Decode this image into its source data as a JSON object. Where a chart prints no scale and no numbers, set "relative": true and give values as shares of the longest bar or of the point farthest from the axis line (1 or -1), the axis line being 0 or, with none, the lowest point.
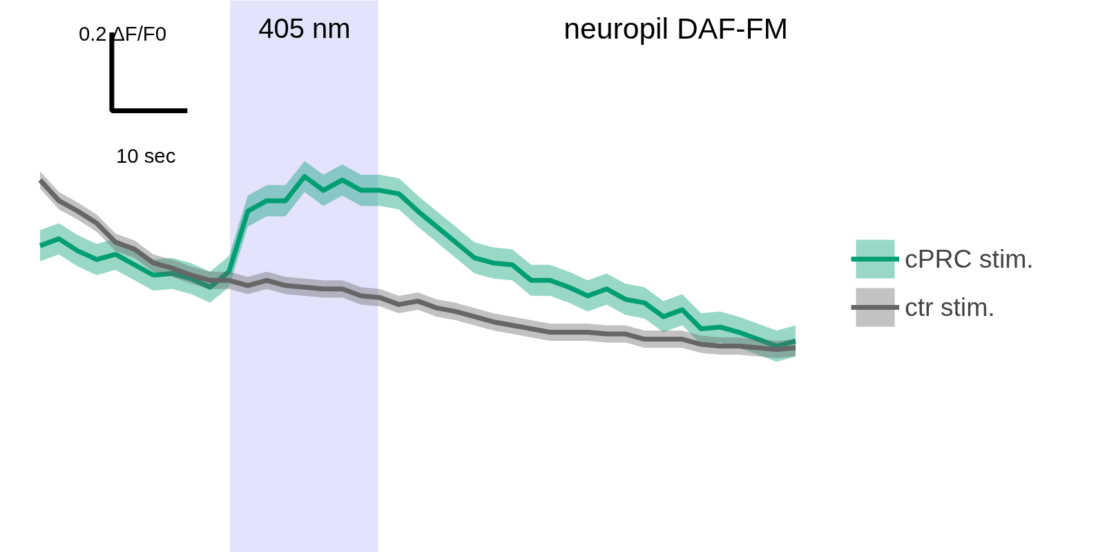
{
  "chart_data": {
    "type": "line",
    "title": "neuropil DAF-FM",
    "relative": true,
    "categories": [
      null,
      null,
      null,
      null,
      null,
      null,
      null,
      null,
      null,
      null,
      null,
      null,
      null,
      null,
      null,
      null,
      null,
      null,
      null,
      null,
      null,
      null,
      null,
      null,
      null,
      null,
      null,
      null,
      null,
      null,
      null,
      null,
      null,
      null,
      null,
      null,
      null,
      null,
      null,
      null,
      null
    ],
    "series": [
      {
        "name": "cPRC stim.",
        "color": "#009e73",
        "values": [
          0.6,
          0.64,
          0.57,
          0.52,
          0.55,
          0.49,
          0.43,
          0.44,
          0.41,
          0.36,
          0.45,
          0.8,
          0.86,
          0.86,
          1.0,
          0.92,
          0.98,
          0.92,
          0.92,
          0.9,
          0.8,
          0.71,
          0.62,
          0.53,
          0.5,
          0.49,
          0.4,
          0.4,
          0.36,
          0.31,
          0.35,
          0.29,
          0.27,
          0.19,
          0.23,
          0.12,
          0.13,
          0.1,
          0.06,
          0.02,
          0.05
        ],
        "lower": [
          0.51,
          0.55,
          0.48,
          0.43,
          0.46,
          0.4,
          0.34,
          0.35,
          0.32,
          0.27,
          0.36,
          0.71,
          0.77,
          0.77,
          0.91,
          0.83,
          0.89,
          0.83,
          0.83,
          0.81,
          0.71,
          0.62,
          0.53,
          0.44,
          0.41,
          0.4,
          0.31,
          0.31,
          0.27,
          0.22,
          0.26,
          0.2,
          0.18,
          0.1,
          0.14,
          0.03,
          0.04,
          0.01,
          -0.03,
          -0.07,
          -0.04
        ],
        "upper": [
          0.69,
          0.73,
          0.66,
          0.61,
          0.64,
          0.58,
          0.52,
          0.53,
          0.5,
          0.45,
          0.54,
          0.89,
          0.95,
          0.95,
          1.09,
          1.01,
          1.07,
          1.01,
          1.01,
          0.99,
          0.89,
          0.8,
          0.71,
          0.62,
          0.59,
          0.58,
          0.49,
          0.49,
          0.45,
          0.4,
          0.44,
          0.38,
          0.36,
          0.28,
          0.32,
          0.21,
          0.22,
          0.19,
          0.15,
          0.11,
          0.14
        ]
      },
      {
        "name": "ctr stim.",
        "color": "#666666",
        "values": [
          0.98,
          0.86,
          0.8,
          0.73,
          0.62,
          0.58,
          0.5,
          0.47,
          0.43,
          0.4,
          0.4,
          0.37,
          0.4,
          0.37,
          0.36,
          0.35,
          0.35,
          0.31,
          0.3,
          0.26,
          0.28,
          0.24,
          0.22,
          0.19,
          0.16,
          0.14,
          0.12,
          0.1,
          0.1,
          0.1,
          0.09,
          0.09,
          0.06,
          0.06,
          0.06,
          0.03,
          0.02,
          0.02,
          0.01,
          0.0,
          0.01
        ],
        "lower": [
          0.93,
          0.81,
          0.75,
          0.68,
          0.57,
          0.53,
          0.45,
          0.42,
          0.38,
          0.35,
          0.35,
          0.32,
          0.35,
          0.32,
          0.31,
          0.3,
          0.3,
          0.26,
          0.25,
          0.21,
          0.23,
          0.19,
          0.17,
          0.14,
          0.11,
          0.09,
          0.07,
          0.05,
          0.05,
          0.05,
          0.04,
          0.04,
          0.01,
          0.01,
          0.01,
          -0.02,
          -0.03,
          -0.03,
          -0.04,
          -0.05,
          -0.04
        ],
        "upper": [
          1.03,
          0.91,
          0.85,
          0.78,
          0.67,
          0.63,
          0.55,
          0.52,
          0.48,
          0.45,
          0.45,
          0.42,
          0.45,
          0.42,
          0.41,
          0.4,
          0.4,
          0.36,
          0.35,
          0.31,
          0.33,
          0.29,
          0.27,
          0.24,
          0.21,
          0.19,
          0.17,
          0.15,
          0.15,
          0.15,
          0.14,
          0.14,
          0.11,
          0.11,
          0.11,
          0.08,
          0.07,
          0.07,
          0.06,
          0.05,
          0.06
        ]
      }
    ],
    "annotations": [
      "405 nm",
      "0.2 ΔF/F0",
      "10 sec"
    ],
    "legend": "right",
    "grid": false,
    "line_style": "solid",
    "marker": "none"
  }
}
